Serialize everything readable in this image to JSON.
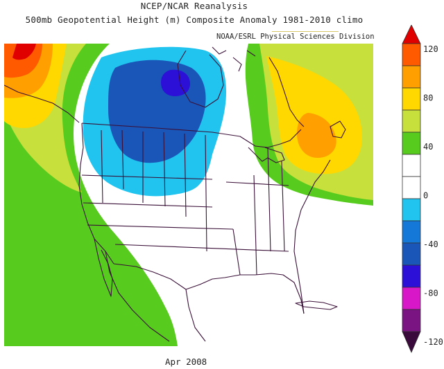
{
  "header": {
    "title_line1": "NCEP/NCAR Reanalysis",
    "title_line2": "500mb Geopotential Height (m) Composite Anomaly 1981-2010 climo",
    "credit": "NOAA/ESRL Physical Sciences Division"
  },
  "footer": {
    "date": "Apr 2008"
  },
  "legend": {
    "bins": [
      {
        "from": 120,
        "to": null,
        "color": "#e00000"
      },
      {
        "from": 100,
        "to": 120,
        "color": "#ff5a00"
      },
      {
        "from": 80,
        "to": 100,
        "color": "#ffa000"
      },
      {
        "from": 60,
        "to": 80,
        "color": "#ffd800"
      },
      {
        "from": 40,
        "to": 60,
        "color": "#c8e03c"
      },
      {
        "from": 20,
        "to": 40,
        "color": "#58cc1e"
      },
      {
        "from": 0,
        "to": 20,
        "color": "#ffffff"
      },
      {
        "from": -20,
        "to": 0,
        "color": "#ffffff"
      },
      {
        "from": -40,
        "to": -20,
        "color": "#20c4ee"
      },
      {
        "from": -60,
        "to": -40,
        "color": "#1478d8"
      },
      {
        "from": -80,
        "to": -60,
        "color": "#1a56b8"
      },
      {
        "from": -100,
        "to": -80,
        "color": "#2c10d8"
      },
      {
        "from": -120,
        "to": -100,
        "color": "#d818c8"
      },
      {
        "from": null,
        "to": -120,
        "color": "#7a1482"
      },
      {
        "from": null,
        "to": null,
        "color": "#3a0a3c"
      }
    ],
    "tick_labels": [
      "120",
      "80",
      "40",
      "0",
      "-40",
      "-80",
      "-120"
    ]
  },
  "map_regions": [
    {
      "name": "pacific-positive-anomaly",
      "value_range": "20 to 40",
      "color": "#58cc1e"
    },
    {
      "name": "pacific-positive-anomaly-inner",
      "value_range": "40 to 60",
      "color": "#c8e03c"
    },
    {
      "name": "alaska-positive-core",
      "value_range": ">120",
      "color": "#e00000"
    },
    {
      "name": "canada-negative-anomaly",
      "value_range": "-20 to -40",
      "color": "#20c4ee"
    },
    {
      "name": "canada-negative-core",
      "value_range": "-60 to -80",
      "color": "#1a56b8"
    },
    {
      "name": "hudson-negative-center",
      "value_range": "-80 to -100",
      "color": "#2c10d8"
    },
    {
      "name": "east-positive-anomaly",
      "value_range": "60 to 80",
      "color": "#ffd800"
    },
    {
      "name": "east-positive-core",
      "value_range": "80 to 100",
      "color": "#ffa000"
    }
  ]
}
